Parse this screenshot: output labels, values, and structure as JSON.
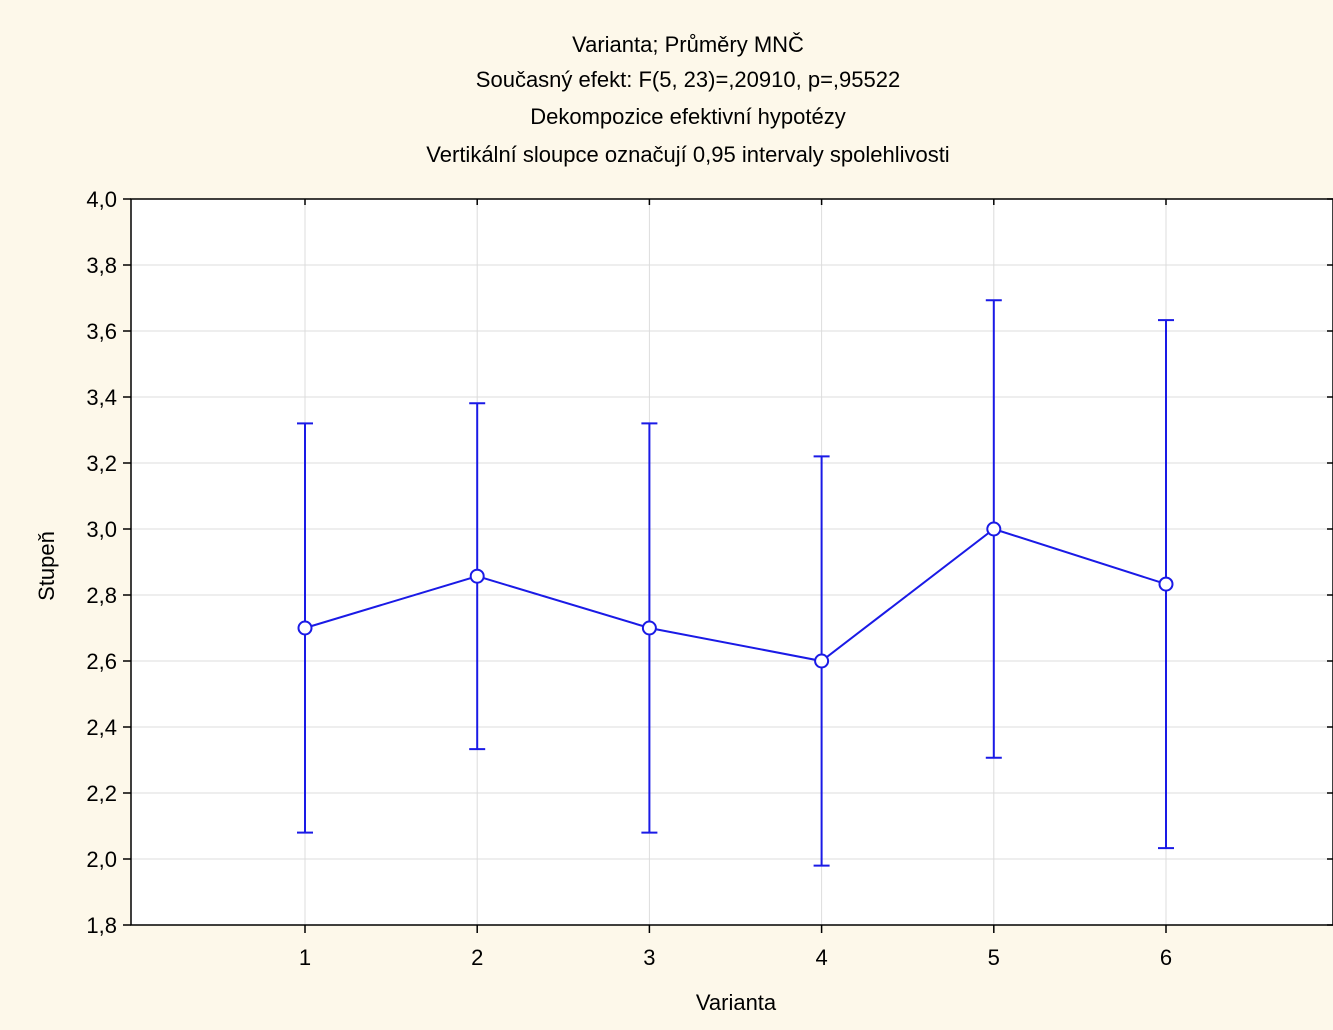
{
  "chart_data": {
    "type": "line",
    "title_lines": [
      "Varianta; Průměry MNČ",
      "Současný efekt: F(5, 23)=,20910, p=,95522",
      "Dekompozice efektivní hypotézy",
      "Vertikální sloupce označují 0,95 intervaly spolehlivosti"
    ],
    "xlabel": "Varianta",
    "ylabel": "Stupeň",
    "categories": [
      "1",
      "2",
      "3",
      "4",
      "5",
      "6"
    ],
    "ylim": [
      1.8,
      4.0
    ],
    "y_ticks": [
      "1,8",
      "2,0",
      "2,2",
      "2,4",
      "2,6",
      "2,8",
      "3,0",
      "3,2",
      "3,4",
      "3,6",
      "3,8",
      "4,0"
    ],
    "series": [
      {
        "values": [
          2.7,
          2.857,
          2.7,
          2.6,
          3.0,
          2.833
        ],
        "ci_lower": [
          2.08,
          2.333,
          2.08,
          1.98,
          2.307,
          2.033
        ],
        "ci_upper": [
          3.32,
          3.381,
          3.32,
          3.22,
          3.693,
          3.633
        ],
        "color": "#1a1ae6"
      }
    ],
    "grid": true,
    "plot_background": "#ffffff",
    "page_background": "#fdf8ea"
  }
}
